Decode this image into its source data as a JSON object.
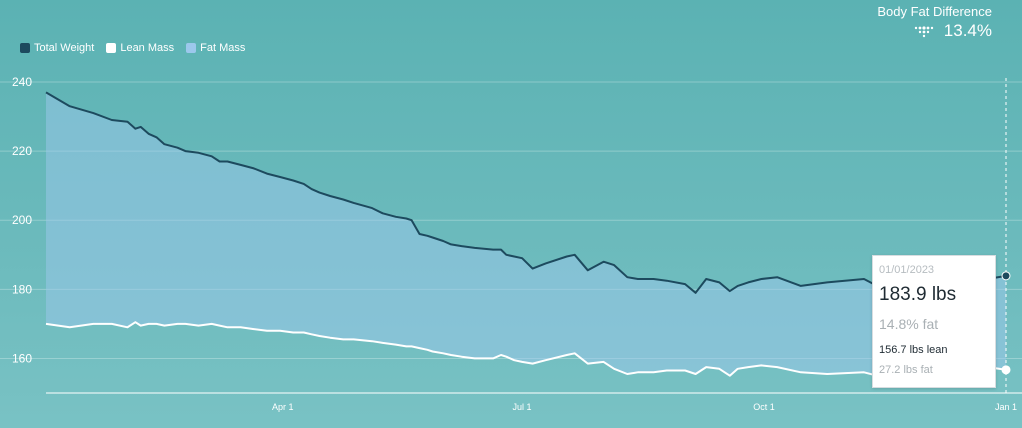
{
  "summary": {
    "title": "Body Fat Difference",
    "value": "13.4%"
  },
  "legend": [
    {
      "name": "Total Weight",
      "color": "#1d4a5e"
    },
    {
      "name": "Lean Mass",
      "color": "#ffffff"
    },
    {
      "name": "Fat Mass",
      "color": "#9cc8ec"
    }
  ],
  "tooltip": {
    "date": "01/01/2023",
    "weight": "183.9 lbs",
    "fat_percent": "14.8% fat",
    "lean": "156.7 lbs lean",
    "fat": "27.2 lbs fat"
  },
  "chart_data": {
    "type": "area",
    "x_domain": [
      "2022-01-01",
      "2023-01-01"
    ],
    "ylim": [
      150,
      240
    ],
    "yticks": [
      160,
      180,
      200,
      220,
      240
    ],
    "xticks": [
      {
        "label": "Apr 1",
        "date": "2022-04-01"
      },
      {
        "label": "Jul 1",
        "date": "2022-07-01"
      },
      {
        "label": "Oct 1",
        "date": "2022-10-01"
      },
      {
        "label": "Jan 1",
        "date": "2023-01-01"
      }
    ],
    "grid": true,
    "legend_position": "top-left",
    "series": [
      {
        "name": "Total Weight",
        "x": [
          "2022-01-01",
          "2022-01-10",
          "2022-01-19",
          "2022-01-26",
          "2022-02-01",
          "2022-02-04",
          "2022-02-06",
          "2022-02-09",
          "2022-02-12",
          "2022-02-15",
          "2022-02-20",
          "2022-02-23",
          "2022-02-28",
          "2022-03-05",
          "2022-03-08",
          "2022-03-11",
          "2022-03-16",
          "2022-03-21",
          "2022-03-26",
          "2022-03-31",
          "2022-04-05",
          "2022-04-09",
          "2022-04-12",
          "2022-04-15",
          "2022-04-19",
          "2022-04-24",
          "2022-04-28",
          "2022-05-05",
          "2022-05-09",
          "2022-05-14",
          "2022-05-18",
          "2022-05-20",
          "2022-05-23",
          "2022-05-26",
          "2022-05-28",
          "2022-06-01",
          "2022-06-04",
          "2022-06-08",
          "2022-06-13",
          "2022-06-20",
          "2022-06-23",
          "2022-06-25",
          "2022-06-28",
          "2022-07-01",
          "2022-07-05",
          "2022-07-10",
          "2022-07-18",
          "2022-07-21",
          "2022-07-26",
          "2022-08-01",
          "2022-08-05",
          "2022-08-10",
          "2022-08-14",
          "2022-08-20",
          "2022-08-25",
          "2022-09-01",
          "2022-09-05",
          "2022-09-09",
          "2022-09-14",
          "2022-09-18",
          "2022-09-21",
          "2022-09-25",
          "2022-09-30",
          "2022-10-06",
          "2022-10-15",
          "2022-10-25",
          "2022-11-08",
          "2022-11-13",
          "2022-11-20",
          "2022-11-25",
          "2022-11-28",
          "2022-12-03",
          "2022-12-08",
          "2022-12-14",
          "2022-12-19",
          "2022-12-25",
          "2023-01-01"
        ],
        "values": [
          237.0,
          233.0,
          231.0,
          229.0,
          228.5,
          226.5,
          227.0,
          225.0,
          224.0,
          222.0,
          221.0,
          220.0,
          219.5,
          218.5,
          217.0,
          217.0,
          216.0,
          215.0,
          213.5,
          212.5,
          211.5,
          210.5,
          209.0,
          208.0,
          207.0,
          206.0,
          205.0,
          203.5,
          202.0,
          201.0,
          200.5,
          200.0,
          196.0,
          195.5,
          195.0,
          194.0,
          193.0,
          192.5,
          192.0,
          191.5,
          191.5,
          190.0,
          189.5,
          189.0,
          186.0,
          187.5,
          189.5,
          190.0,
          185.5,
          188.0,
          187.0,
          183.5,
          183.0,
          183.0,
          182.5,
          181.5,
          179.0,
          183.0,
          182.0,
          179.5,
          181.0,
          182.0,
          183.0,
          183.5,
          181.0,
          182.0,
          183.0,
          181.0,
          180.5,
          184.0,
          183.0,
          182.0,
          183.0,
          182.0,
          184.0,
          183.0,
          183.9
        ]
      },
      {
        "name": "Lean Mass",
        "x": [
          "2022-01-01",
          "2022-01-10",
          "2022-01-19",
          "2022-01-26",
          "2022-02-01",
          "2022-02-04",
          "2022-02-06",
          "2022-02-09",
          "2022-02-12",
          "2022-02-15",
          "2022-02-20",
          "2022-02-23",
          "2022-02-28",
          "2022-03-05",
          "2022-03-08",
          "2022-03-11",
          "2022-03-16",
          "2022-03-21",
          "2022-03-26",
          "2022-03-31",
          "2022-04-05",
          "2022-04-09",
          "2022-04-12",
          "2022-04-15",
          "2022-04-19",
          "2022-04-24",
          "2022-04-28",
          "2022-05-05",
          "2022-05-09",
          "2022-05-14",
          "2022-05-18",
          "2022-05-20",
          "2022-05-23",
          "2022-05-26",
          "2022-05-28",
          "2022-06-01",
          "2022-06-04",
          "2022-06-08",
          "2022-06-13",
          "2022-06-20",
          "2022-06-23",
          "2022-06-25",
          "2022-06-28",
          "2022-07-01",
          "2022-07-05",
          "2022-07-10",
          "2022-07-18",
          "2022-07-21",
          "2022-07-26",
          "2022-08-01",
          "2022-08-05",
          "2022-08-10",
          "2022-08-14",
          "2022-08-20",
          "2022-08-25",
          "2022-09-01",
          "2022-09-05",
          "2022-09-09",
          "2022-09-14",
          "2022-09-18",
          "2022-09-21",
          "2022-09-25",
          "2022-09-30",
          "2022-10-06",
          "2022-10-15",
          "2022-10-25",
          "2022-11-08",
          "2022-11-13",
          "2022-11-20",
          "2022-11-25",
          "2022-11-28",
          "2022-12-03",
          "2022-12-08",
          "2022-12-14",
          "2022-12-19",
          "2022-12-25",
          "2023-01-01"
        ],
        "values": [
          170.0,
          169.0,
          170.0,
          170.0,
          169.0,
          170.5,
          169.5,
          170.0,
          170.0,
          169.5,
          170.0,
          170.0,
          169.5,
          170.0,
          169.5,
          169.0,
          169.0,
          168.5,
          168.0,
          168.0,
          167.5,
          167.5,
          167.0,
          166.5,
          166.0,
          165.5,
          165.5,
          165.0,
          164.5,
          164.0,
          163.5,
          163.5,
          163.0,
          162.5,
          162.0,
          161.5,
          161.0,
          160.5,
          160.0,
          160.0,
          161.0,
          160.5,
          159.5,
          159.0,
          158.5,
          159.5,
          161.0,
          161.5,
          158.5,
          159.0,
          157.0,
          155.5,
          156.0,
          156.0,
          156.5,
          156.5,
          155.5,
          157.5,
          157.0,
          155.0,
          157.0,
          157.5,
          158.0,
          157.5,
          156.0,
          155.5,
          156.0,
          155.0,
          155.0,
          157.0,
          158.0,
          157.0,
          157.0,
          157.5,
          156.5,
          157.5,
          156.7
        ]
      }
    ],
    "cursor": {
      "x": "2023-01-01"
    }
  }
}
